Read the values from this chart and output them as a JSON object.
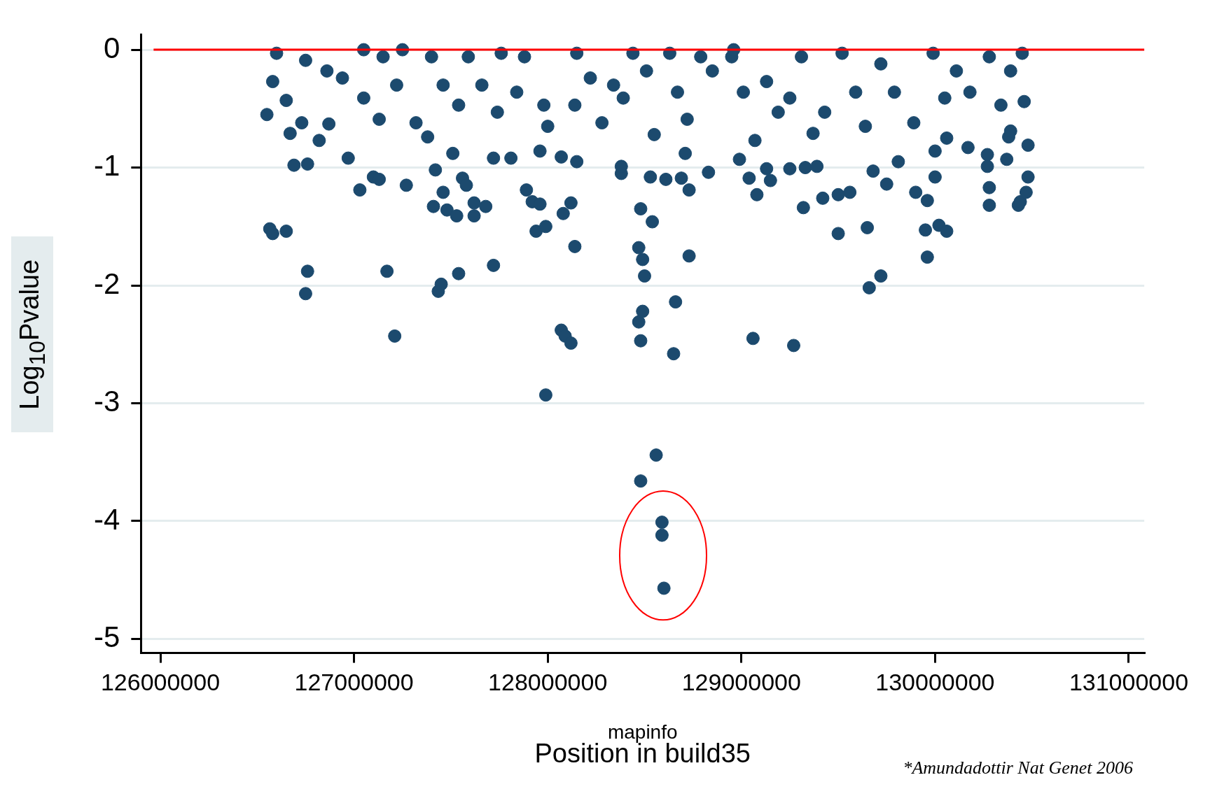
{
  "chart_data": {
    "type": "scatter",
    "xlabel": "Position in build35",
    "ylabel": "Log$_{10}$Pvalue",
    "annotations": [
      "mapinfo",
      "*Amundadottir Nat Genet 2006"
    ],
    "xlim": [
      125900000,
      131080000
    ],
    "ylim": [
      -5.12,
      0.13
    ],
    "xticks": [
      126000000,
      127000000,
      128000000,
      129000000,
      130000000,
      131000000
    ],
    "yticks": [
      0,
      -1,
      -2,
      -3,
      -4,
      -5
    ],
    "grid": "y",
    "legend": false,
    "marker": "circle",
    "ref_lines": [
      {
        "axis": "y",
        "value": 0,
        "color": "#ff0000"
      }
    ],
    "series": [
      {
        "color": "#1c4a6e",
        "x": [
          126565000,
          126580000,
          126650000,
          126760000,
          126750000,
          126760000,
          126690000,
          126970000,
          127030000,
          127100000,
          127130000,
          127170000,
          127210000,
          127270000,
          127410000,
          127420000,
          127435000,
          127450000,
          127460000,
          127480000,
          127510000,
          127530000,
          127540000,
          127560000,
          127580000,
          127620000,
          127620000,
          127680000,
          127720000,
          127720000,
          127810000,
          127890000,
          127920000,
          127940000,
          127960000,
          127990000,
          127990000,
          127960000,
          128080000,
          128070000,
          128090000,
          128120000,
          128120000,
          128140000,
          128070000,
          128150000,
          128380000,
          128380000,
          128470000,
          128480000,
          128490000,
          128500000,
          128470000,
          128490000,
          128480000,
          128540000,
          128530000,
          128560000,
          128480000,
          128590000,
          128590000,
          128600000,
          128610000,
          128650000,
          128660000,
          128690000,
          128730000,
          128730000,
          128830000,
          128710000,
          128990000,
          129040000,
          129060000,
          129080000,
          129130000,
          129150000,
          129250000,
          129270000,
          129320000,
          129330000,
          129390000,
          129420000,
          129500000,
          129500000,
          129560000,
          129650000,
          129660000,
          129680000,
          129720000,
          129750000,
          129810000,
          129900000,
          129950000,
          129960000,
          129960000,
          130000000,
          130020000,
          130060000,
          130000000,
          130060000,
          130170000,
          130270000,
          130280000,
          130280000,
          130270000,
          130380000,
          130370000,
          130430000,
          130440000,
          130470000,
          130480000,
          130480000,
          130390000,
          126550000,
          126600000,
          126580000,
          126650000,
          126670000,
          126730000,
          126750000,
          126820000,
          126870000,
          126860000,
          126940000,
          127050000,
          127050000,
          127130000,
          127150000,
          127220000,
          127250000,
          127320000,
          127380000,
          127400000,
          127460000,
          127540000,
          127590000,
          127660000,
          127740000,
          127760000,
          127840000,
          127880000,
          127980000,
          128000000,
          128140000,
          128150000,
          128220000,
          128280000,
          128340000,
          128390000,
          128440000,
          128510000,
          128550000,
          128630000,
          128670000,
          128720000,
          128790000,
          128850000,
          128950000,
          128960000,
          129010000,
          129070000,
          129130000,
          129190000,
          129250000,
          129310000,
          129370000,
          129430000,
          129520000,
          129590000,
          129640000,
          129720000,
          129790000,
          129890000,
          129990000,
          130050000,
          130110000,
          130180000,
          130280000,
          130340000,
          130390000,
          130450000,
          130460000
        ],
        "values": [
          -1.52,
          -1.56,
          -1.54,
          -1.88,
          -2.07,
          -0.97,
          -0.98,
          -0.92,
          -1.19,
          -1.08,
          -1.1,
          -1.88,
          -2.43,
          -1.15,
          -1.33,
          -1.02,
          -2.05,
          -1.99,
          -1.21,
          -1.36,
          -0.88,
          -1.41,
          -1.9,
          -1.09,
          -1.15,
          -1.3,
          -1.41,
          -1.33,
          -1.83,
          -0.92,
          -0.92,
          -1.19,
          -1.29,
          -1.54,
          -1.31,
          -1.5,
          -2.93,
          -0.86,
          -1.39,
          -2.38,
          -2.43,
          -2.49,
          -1.3,
          -1.67,
          -0.91,
          -0.95,
          -1.05,
          -0.99,
          -1.68,
          -1.35,
          -1.78,
          -1.92,
          -2.31,
          -2.22,
          -2.47,
          -1.46,
          -1.08,
          -3.44,
          -3.66,
          -4.01,
          -4.12,
          -4.57,
          -1.1,
          -2.58,
          -2.14,
          -1.09,
          -1.75,
          -1.19,
          -1.04,
          -0.88,
          -0.93,
          -1.09,
          -2.45,
          -1.23,
          -1.01,
          -1.11,
          -1.01,
          -2.51,
          -1.34,
          -1,
          -0.99,
          -1.26,
          -1.56,
          -1.23,
          -1.21,
          -1.51,
          -2.02,
          -1.03,
          -1.92,
          -1.14,
          -0.95,
          -1.21,
          -1.53,
          -1.28,
          -1.76,
          -1.08,
          -1.49,
          -1.54,
          -0.86,
          -0.75,
          -0.83,
          -0.99,
          -1.17,
          -1.32,
          -0.89,
          -0.74,
          -0.93,
          -1.32,
          -1.29,
          -1.21,
          -1.08,
          -0.81,
          -0.69,
          -0.55,
          -0.03,
          -0.27,
          -0.43,
          -0.71,
          -0.62,
          -0.09,
          -0.77,
          -0.63,
          -0.18,
          -0.24,
          0,
          -0.41,
          -0.59,
          -0.06,
          -0.3,
          0,
          -0.62,
          -0.74,
          -0.06,
          -0.3,
          -0.47,
          -0.06,
          -0.3,
          -0.53,
          -0.03,
          -0.36,
          -0.06,
          -0.47,
          -0.65,
          -0.47,
          -0.03,
          -0.24,
          -0.62,
          -0.3,
          -0.41,
          -0.03,
          -0.18,
          -0.72,
          -0.03,
          -0.36,
          -0.59,
          -0.06,
          -0.18,
          -0.06,
          0,
          -0.36,
          -0.77,
          -0.27,
          -0.53,
          -0.41,
          -0.06,
          -0.71,
          -0.53,
          -0.03,
          -0.36,
          -0.65,
          -0.12,
          -0.36,
          -0.62,
          -0.03,
          -0.41,
          -0.18,
          -0.36,
          -0.06,
          -0.47,
          -0.18,
          -0.03,
          -0.44
        ]
      }
    ]
  }
}
